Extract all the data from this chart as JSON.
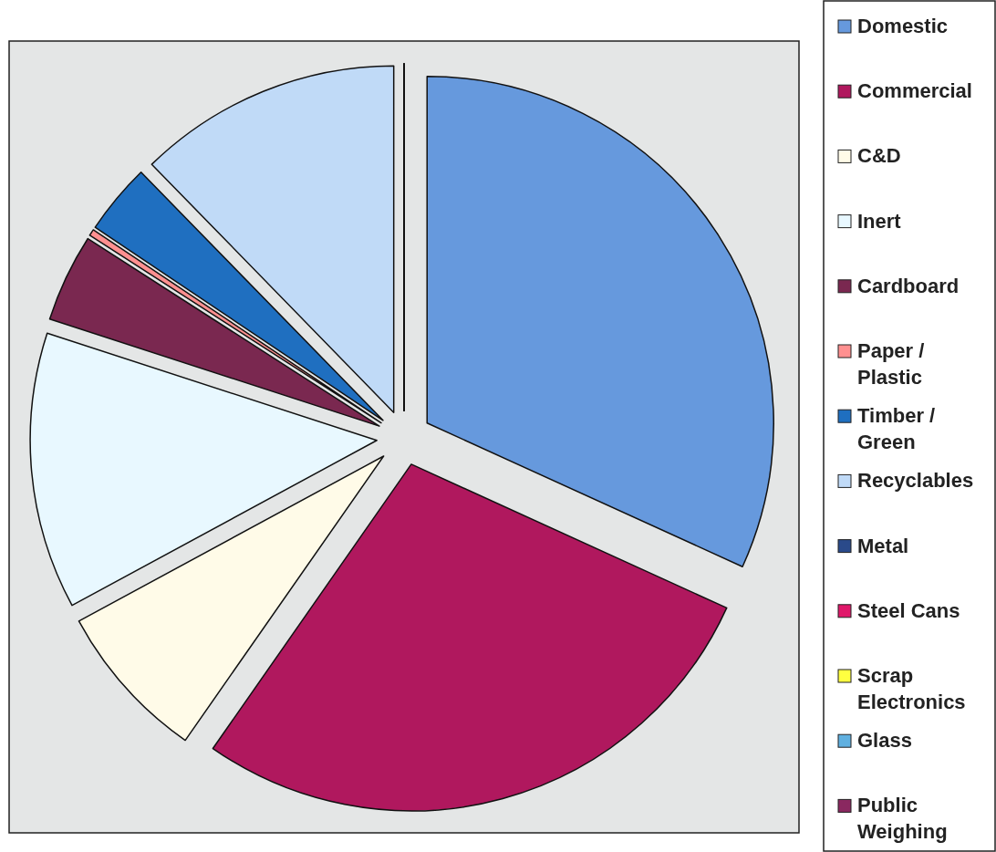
{
  "chart_data": {
    "type": "pie",
    "categories": [
      "Domestic",
      "Commercial",
      "C&D",
      "Inert",
      "Cardboard",
      "Paper / Plastic",
      "Timber / Green",
      "Recyclables",
      "Metal",
      "Steel Cans",
      "Scrap Electronics",
      "Glass",
      "Public Weighing"
    ],
    "values": [
      31.8,
      27.9,
      7.4,
      12.9,
      4.1,
      0.3,
      3.3,
      12.3,
      0,
      0,
      0,
      0,
      0
    ],
    "colors": [
      "#6699dd",
      "#b0185e",
      "#fffbe8",
      "#e8f8ff",
      "#7a2850",
      "#ff9090",
      "#1f6fc0",
      "#c0daf7",
      "#2a4a8a",
      "#e0186a",
      "#ffff40",
      "#60b0e0",
      "#8a2860"
    ],
    "legend": "right"
  }
}
